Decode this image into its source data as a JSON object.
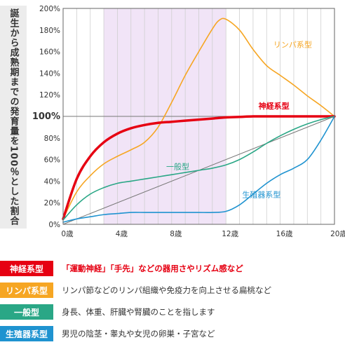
{
  "y_axis_title": "誕生から成熟期までの発育量を100％とした割合",
  "chart_data": {
    "type": "line",
    "x_axis": {
      "min": 0,
      "max": 20,
      "ticks": [
        0,
        4,
        8,
        12,
        16,
        20
      ],
      "tick_labels": [
        "0歳",
        "4歳",
        "8歳",
        "12歳",
        "16歳",
        "20歳"
      ]
    },
    "y_axis": {
      "min": 0,
      "max": 200,
      "ticks": [
        0,
        20,
        40,
        60,
        80,
        100,
        120,
        140,
        160,
        180,
        200
      ],
      "tick_labels": [
        "0%",
        "20%",
        "40%",
        "60%",
        "80%",
        "100%",
        "120%",
        "140%",
        "160%",
        "180%",
        "200%"
      ],
      "emphasized_tick": 100
    },
    "grid": "vertical every 1 year",
    "highlight_band": {
      "x_start": 3,
      "x_end": 12,
      "color": "#f1e4f7"
    },
    "reference_line": {
      "from": [
        0,
        0
      ],
      "to": [
        20,
        100
      ],
      "color": "#777777"
    },
    "series": [
      {
        "name": "リンパ系型",
        "color": "#f6a623",
        "x": [
          0,
          1,
          2,
          3,
          4,
          5,
          6,
          7,
          8,
          9,
          10,
          11,
          11.5,
          12,
          13,
          14,
          15,
          16,
          17,
          18,
          19,
          20
        ],
        "y": [
          5,
          30,
          45,
          56,
          63,
          69,
          76,
          90,
          113,
          138,
          160,
          181,
          189,
          190,
          180,
          162,
          147,
          138,
          129,
          119,
          110,
          100
        ]
      },
      {
        "name": "神経系型",
        "color": "#e60012",
        "x": [
          0,
          1,
          2,
          3,
          4,
          5,
          6,
          7,
          8,
          9,
          10,
          11,
          12,
          13,
          14,
          15,
          16,
          17,
          18,
          19,
          20
        ],
        "y": [
          5,
          42,
          63,
          76,
          84,
          89,
          92,
          94,
          95,
          96,
          97,
          98,
          99,
          99.5,
          100,
          100,
          100,
          100,
          100,
          100,
          100
        ]
      },
      {
        "name": "一般型",
        "color": "#2aa786",
        "x": [
          0,
          1,
          2,
          3,
          4,
          5,
          6,
          7,
          8,
          9,
          10,
          11,
          12,
          13,
          14,
          15,
          16,
          17,
          18,
          19,
          20
        ],
        "y": [
          4,
          18,
          28,
          34,
          38,
          40,
          42,
          44,
          46,
          48,
          50,
          52,
          55,
          60,
          67,
          75,
          82,
          88,
          93,
          97,
          100
        ]
      },
      {
        "name": "生殖器系型",
        "color": "#1f93d0",
        "x": [
          0,
          1,
          2,
          3,
          4,
          5,
          6,
          7,
          8,
          9,
          10,
          11,
          12,
          13,
          14,
          15,
          16,
          17,
          18,
          19,
          20
        ],
        "y": [
          2,
          5,
          7,
          9,
          10,
          11,
          11,
          11,
          11,
          11,
          11,
          11,
          12,
          18,
          28,
          38,
          46,
          52,
          60,
          78,
          100
        ]
      }
    ],
    "annotations": [
      {
        "text": "リンパ系型",
        "x": 15.5,
        "y": 164,
        "color": "#f6a623",
        "bold": false
      },
      {
        "text": "神経系型",
        "x": 14.4,
        "y": 107,
        "color": "#e60012",
        "bold": true
      },
      {
        "text": "一般型",
        "x": 7.6,
        "y": 51,
        "color": "#2aa786",
        "bold": false
      },
      {
        "text": "生殖器系型",
        "x": 13.2,
        "y": 25,
        "color": "#1f93d0",
        "bold": false
      }
    ]
  },
  "legend": [
    {
      "label": "神経系型",
      "color": "#e60012",
      "desc": "「運動神経」「手先」などの器用さやリズム感など",
      "accent": true
    },
    {
      "label": "リンパ系型",
      "color": "#f6a623",
      "desc": "リンパ節などのリンパ組織や免疫力を向上させる扁桃など",
      "accent": false
    },
    {
      "label": "一般型",
      "color": "#2aa786",
      "desc": "身長、体重、肝臓や腎臓のことを指します",
      "accent": false
    },
    {
      "label": "生殖器系型",
      "color": "#1f93d0",
      "desc": "男児の陰茎・睾丸や女児の卵巣・子宮など",
      "accent": false
    }
  ]
}
